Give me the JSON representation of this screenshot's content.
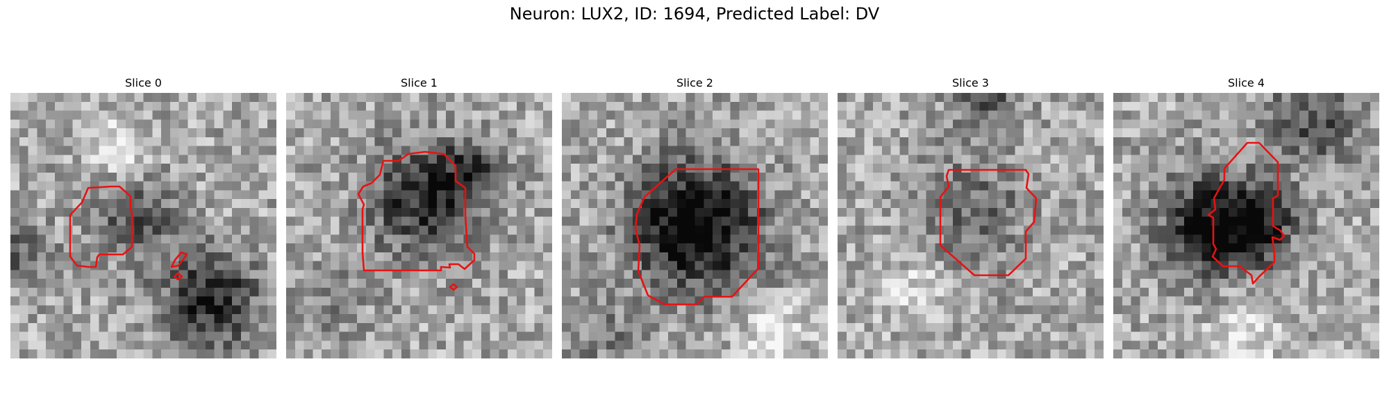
{
  "figure": {
    "title": "Neuron: LUX2, ID: 1694, Predicted Label: DV"
  },
  "contour_color": "#e81212",
  "panels": [
    {
      "title": "Slice 0"
    },
    {
      "title": "Slice 1"
    },
    {
      "title": "Slice 2"
    },
    {
      "title": "Slice 3"
    },
    {
      "title": "Slice 4"
    }
  ]
}
